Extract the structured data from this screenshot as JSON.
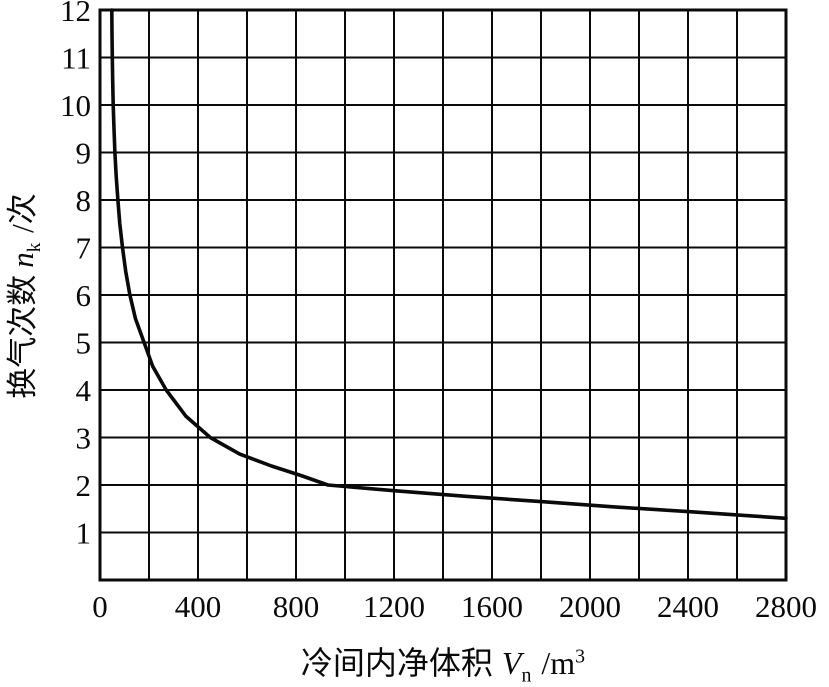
{
  "chart_data": {
    "type": "line",
    "title": "",
    "xlabel_cn": "冷间内净体积",
    "xlabel_var": "V",
    "xlabel_sub": "n",
    "xlabel_unit": " /m",
    "xlabel_sup": "3",
    "ylabel_cn": "换气次数",
    "ylabel_var": "n",
    "ylabel_sub": "k",
    "ylabel_unit": " /次",
    "xlim": [
      0,
      2800
    ],
    "ylim": [
      0,
      12
    ],
    "x_grid_step": 200,
    "y_grid_step": 1,
    "x_ticks": [
      0,
      400,
      800,
      1200,
      1600,
      2000,
      2400,
      2800
    ],
    "y_ticks": [
      1,
      2,
      3,
      4,
      5,
      6,
      7,
      8,
      9,
      10,
      11,
      12
    ],
    "grid": true,
    "legend": "none",
    "line_color": "#0a0a0a",
    "background_color": "#ffffff",
    "series": [
      {
        "name": "air-change-rate-curve",
        "points": [
          [
            48,
            12
          ],
          [
            49,
            11.5
          ],
          [
            50,
            11
          ],
          [
            52,
            10.5
          ],
          [
            54,
            10
          ],
          [
            57,
            9.5
          ],
          [
            61,
            9
          ],
          [
            66,
            8.5
          ],
          [
            73,
            8
          ],
          [
            81,
            7.5
          ],
          [
            92,
            7
          ],
          [
            105,
            6.5
          ],
          [
            122,
            6
          ],
          [
            145,
            5.5
          ],
          [
            180,
            5
          ],
          [
            215,
            4.5
          ],
          [
            270,
            4
          ],
          [
            350,
            3.45
          ],
          [
            450,
            3.0
          ],
          [
            570,
            2.65
          ],
          [
            700,
            2.4
          ],
          [
            820,
            2.2
          ],
          [
            930,
            2.0
          ],
          [
            1200,
            1.88
          ],
          [
            1500,
            1.76
          ],
          [
            1800,
            1.65
          ],
          [
            2100,
            1.54
          ],
          [
            2400,
            1.44
          ],
          [
            2600,
            1.37
          ],
          [
            2800,
            1.3
          ]
        ]
      }
    ]
  }
}
